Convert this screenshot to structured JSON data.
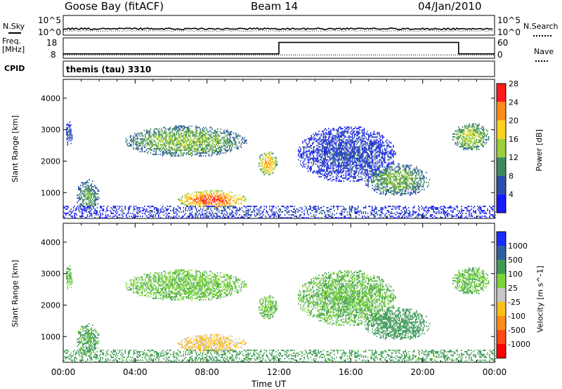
{
  "header": {
    "station": "Goose Bay (fitACF)",
    "beam": "Beam 14",
    "date": "04/Jan/2010"
  },
  "noise_panel": {
    "left_label": "N.Sky",
    "right_label": "N.Search",
    "tick_top": "10^5",
    "tick_bottom": "10^0"
  },
  "freq_panel": {
    "left_label_1": "Freq.",
    "left_label_2": "[MHz]",
    "right_label": "Nave",
    "left_ticks": [
      "18",
      "8"
    ],
    "right_ticks": [
      "60",
      "0"
    ],
    "freq_steps": [
      {
        "t_start": 0,
        "t_end": 12,
        "value": 10.3
      },
      {
        "t_start": 12,
        "t_end": 22,
        "value": 16.2
      },
      {
        "t_start": 22,
        "t_end": 24,
        "value": 10.3
      }
    ],
    "nave_level": 10
  },
  "cpid": {
    "label": "CPID",
    "text": "themis (tau) 3310"
  },
  "axes": {
    "y_label": "Slant Range [km]",
    "x_label": "Time UT",
    "y_ticks": [
      "1000",
      "2000",
      "3000",
      "4000"
    ],
    "x_ticks": [
      "00:00",
      "04:00",
      "08:00",
      "12:00",
      "16:00",
      "20:00",
      "00:00"
    ]
  },
  "power_scale": {
    "label": "Power [dB]",
    "ticks": [
      "4",
      "8",
      "12",
      "16",
      "20",
      "24",
      "28"
    ],
    "colors": [
      "#1a1aff",
      "#2b4fa8",
      "#3e8a5e",
      "#9ccf3a",
      "#ffd21e",
      "#ff8c1a",
      "#ff1a1a"
    ]
  },
  "velocity_scale": {
    "label": "Velocity [m s^-1]",
    "ticks": [
      "1000",
      "500",
      "100",
      "25",
      "-25",
      "-100",
      "-500",
      "-1000"
    ],
    "colors": [
      "#1a2cff",
      "#2f5fa0",
      "#3f9a5a",
      "#7ad33a",
      "#c8c8c8",
      "#ffbf1a",
      "#ff8c1a",
      "#ff4a1a",
      "#ff0000"
    ]
  },
  "chart_data": {
    "type": "heatmap",
    "title": "Goose Bay (fitACF)  Beam 14  04/Jan/2010",
    "xlabel": "Time UT",
    "ylabel": "Slant Range [km]",
    "xlim": [
      0,
      24
    ],
    "ylim": [
      180,
      4600
    ],
    "echo_regions": [
      {
        "t_start": 0.1,
        "t_end": 0.5,
        "r_start": 2450,
        "r_end": 3250,
        "power_db": 6,
        "velocity": 25
      },
      {
        "t_start": 0.7,
        "t_end": 2.0,
        "r_start": 350,
        "r_end": 1400,
        "power_db": 10,
        "velocity": 40
      },
      {
        "t_start": 3.4,
        "t_end": 10.2,
        "r_start": 2100,
        "r_end": 3100,
        "power_db": 12,
        "velocity": 10
      },
      {
        "t_start": 6.3,
        "t_end": 10.2,
        "r_start": 450,
        "r_end": 1050,
        "power_db": 22,
        "velocity": -110
      },
      {
        "t_start": 10.8,
        "t_end": 11.9,
        "r_start": 1500,
        "r_end": 2300,
        "power_db": 18,
        "velocity": 15
      },
      {
        "t_start": 13.0,
        "t_end": 18.5,
        "r_start": 1300,
        "r_end": 3100,
        "power_db": 5,
        "velocity": 20
      },
      {
        "t_start": 16.7,
        "t_end": 20.4,
        "r_start": 850,
        "r_end": 1900,
        "power_db": 11,
        "velocity": 60
      },
      {
        "t_start": 21.6,
        "t_end": 23.7,
        "r_start": 2300,
        "r_end": 3200,
        "power_db": 13,
        "velocity": 20
      },
      {
        "t_start": 0.0,
        "t_end": 24.0,
        "r_start": 180,
        "r_end": 550,
        "power_db": 5,
        "velocity": 50
      }
    ]
  }
}
